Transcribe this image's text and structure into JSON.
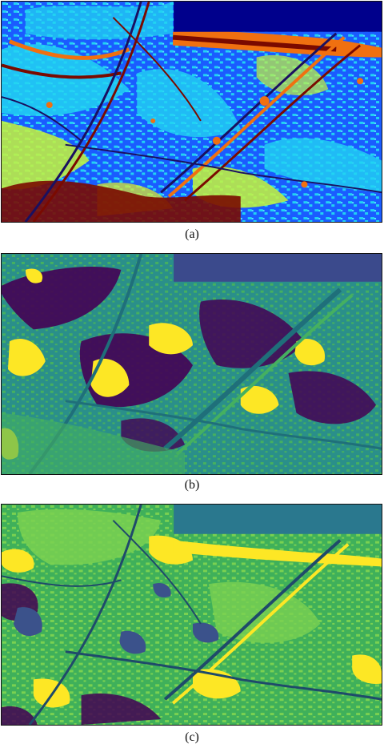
{
  "panels": [
    {
      "id": "a",
      "caption": "(a)",
      "palette": {
        "background": "#1a5cff",
        "cyan": "#22d3f2",
        "light_cyan": "#55e8ff",
        "yellow_green": "#c8f53a",
        "yellow": "#e8f020",
        "orange": "#f07010",
        "dark_red": "#7a0a00",
        "navy": "#00008c",
        "line": "#1a1060"
      }
    },
    {
      "id": "b",
      "caption": "(b)",
      "palette": {
        "background": "#2a8f8a",
        "green": "#45b060",
        "teal": "#1f9a8a",
        "purple": "#440154",
        "yellow": "#fde725",
        "slate": "#3b4a8c",
        "line": "#1f6f7a"
      }
    },
    {
      "id": "c",
      "caption": "(c)",
      "palette": {
        "background": "#3fb05a",
        "light_green": "#7ad151",
        "yellow": "#fde725",
        "purple": "#440154",
        "indigo": "#3b528b",
        "teal": "#2a788e",
        "line": "#1f4a6a"
      }
    }
  ]
}
